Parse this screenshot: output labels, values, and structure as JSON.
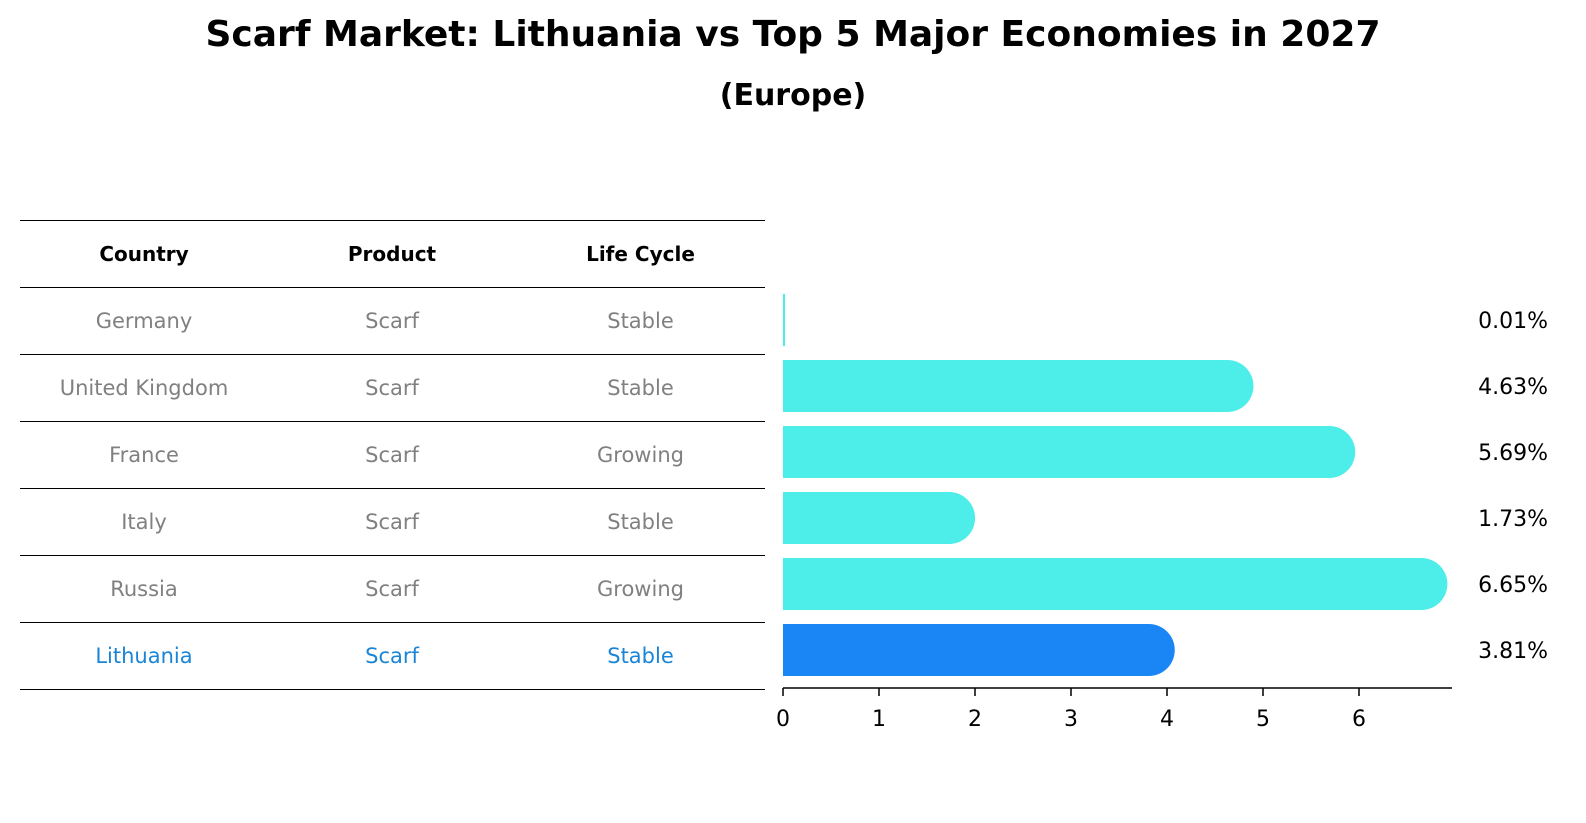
{
  "title": "Scarf Market: Lithuania vs Top 5 Major Economies in 2027",
  "subtitle": "(Europe)",
  "table": {
    "headers": [
      "Country",
      "Product",
      "Life Cycle"
    ],
    "rows": [
      [
        "Germany",
        "Scarf",
        "Stable"
      ],
      [
        "United Kingdom",
        "Scarf",
        "Stable"
      ],
      [
        "France",
        "Scarf",
        "Growing"
      ],
      [
        "Italy",
        "Scarf",
        "Stable"
      ],
      [
        "Russia",
        "Scarf",
        "Growing"
      ],
      [
        "Lithuania",
        "Scarf",
        "Stable"
      ]
    ]
  },
  "chart_data": {
    "type": "bar",
    "orientation": "horizontal",
    "categories": [
      "Germany",
      "United Kingdom",
      "France",
      "Italy",
      "Russia",
      "Lithuania"
    ],
    "values": [
      0.01,
      4.63,
      5.69,
      1.73,
      6.65,
      3.81
    ],
    "value_labels": [
      "0.01%",
      "4.63%",
      "5.69%",
      "1.73%",
      "6.65%",
      "3.81%"
    ],
    "highlight": "Lithuania",
    "xlim": [
      0,
      7
    ],
    "xticks": [
      0,
      1,
      2,
      3,
      4,
      5,
      6
    ],
    "colors": {
      "default": "#4deeea",
      "highlight": "#1a85f5",
      "highlight_text": "#1a85d6",
      "muted_text": "#808080"
    }
  }
}
